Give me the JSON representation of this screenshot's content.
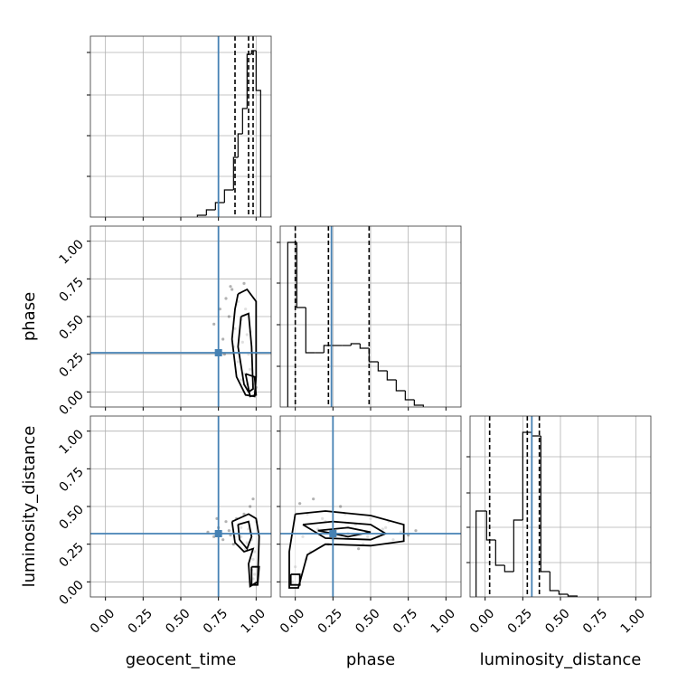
{
  "chart_data": [
    {
      "type": "histogram",
      "xlim": [
        -0.1,
        1.1
      ],
      "xticks": [
        0,
        0.25,
        0.5,
        0.75,
        1
      ],
      "ylim": [
        0,
        100
      ],
      "yticks": [
        22.5,
        45,
        67.5,
        91
      ],
      "bins": [
        0.61,
        0.67,
        0.73,
        0.79,
        0.85,
        0.88,
        0.91,
        0.94,
        0.97,
        1.0,
        1.03
      ],
      "counts": [
        1,
        4,
        8,
        15,
        33,
        46,
        60,
        90,
        92,
        70
      ],
      "color": "#000000",
      "quantiles": [
        0.86,
        0.95,
        0.98
      ],
      "truth": 0.75,
      "truth_color": "#4682b4",
      "grid": true
    },
    {
      "type": "scatter",
      "ylabel": "phase",
      "xlim": [
        -0.1,
        1.1
      ],
      "ylim": [
        -0.1,
        1.1
      ],
      "xticks": [
        0,
        0.25,
        0.5,
        0.75,
        1
      ],
      "yticks": [
        {
          "value": 0,
          "label": "0.00"
        },
        0.25,
        {
          "value": 0.5,
          "label": "0.50"
        },
        0.75,
        {
          "value": 1,
          "label": "1.00"
        }
      ],
      "x": [
        0.72,
        0.76,
        0.78,
        0.8,
        0.82,
        0.84,
        0.85,
        0.86,
        0.87,
        0.88,
        0.89,
        0.9,
        0.91,
        0.92,
        0.93,
        0.94,
        0.95,
        0.96,
        0.97,
        0.98,
        0.99,
        1.0,
        0.83,
        0.88,
        0.92,
        0.96,
        0.79,
        0.9,
        0.94,
        0.98
      ],
      "y": [
        0.45,
        0.55,
        0.35,
        0.62,
        0.5,
        0.68,
        0.3,
        0.42,
        0.58,
        0.2,
        0.65,
        0.48,
        0.33,
        0.12,
        0.55,
        0.05,
        0.25,
        0.4,
        0.02,
        0.1,
        0.0,
        0.03,
        0.7,
        0.6,
        0.72,
        0.15,
        0.25,
        0.08,
        0.38,
        0.05
      ],
      "contours": [
        {
          "x": [
            0.88,
            0.94,
            1.0,
            1.0,
            0.99,
            0.93,
            0.87,
            0.84,
            0.86,
            0.88
          ],
          "y": [
            0.65,
            0.68,
            0.6,
            0.1,
            -0.03,
            -0.02,
            0.1,
            0.35,
            0.55,
            0.65
          ]
        },
        {
          "x": [
            0.9,
            0.95,
            0.97,
            0.98,
            0.95,
            0.92,
            0.88,
            0.9
          ],
          "y": [
            0.5,
            0.52,
            0.3,
            0.02,
            0.0,
            0.05,
            0.3,
            0.5
          ]
        },
        {
          "x": [
            0.93,
            0.99,
            1.0,
            0.96,
            0.93
          ],
          "y": [
            0.12,
            0.1,
            -0.02,
            -0.03,
            0.12
          ]
        }
      ],
      "truth_x": 0.75,
      "truth_y": 0.26,
      "truth_color": "#4682b4",
      "point_color": "#555555",
      "grid": true
    },
    {
      "type": "histogram",
      "xlim": [
        -0.1,
        1.1
      ],
      "xticks": [
        0,
        0.25,
        0.5,
        0.75,
        1
      ],
      "ylim": [
        0,
        200
      ],
      "yticks": [
        45,
        91,
        137,
        182
      ],
      "bins": [
        -0.05,
        0.01,
        0.07,
        0.13,
        0.19,
        0.25,
        0.31,
        0.37,
        0.43,
        0.49,
        0.55,
        0.61,
        0.67,
        0.73,
        0.79,
        0.85
      ],
      "counts": [
        182,
        110,
        60,
        60,
        68,
        68,
        68,
        70,
        65,
        50,
        40,
        30,
        18,
        8,
        2
      ],
      "color": "#000000",
      "quantiles": [
        0.0,
        0.22,
        0.49
      ],
      "truth": 0.24,
      "truth_color": "#4682b4",
      "grid": true
    },
    {
      "type": "scatter",
      "xlabel": "geocent_time",
      "ylabel": "luminosity_distance",
      "xlim": [
        -0.1,
        1.1
      ],
      "ylim": [
        -0.1,
        1.1
      ],
      "xticks": [
        {
          "value": 0,
          "label": "0.00"
        },
        0.25,
        {
          "value": 0.5,
          "label": "0.50"
        },
        0.75,
        {
          "value": 1,
          "label": "1.00"
        }
      ],
      "yticks": [
        {
          "value": 0,
          "label": "0.00"
        },
        0.25,
        {
          "value": 0.5,
          "label": "0.50"
        },
        0.75,
        {
          "value": 1,
          "label": "1.00"
        }
      ],
      "x": [
        0.68,
        0.72,
        0.75,
        0.78,
        0.8,
        0.82,
        0.85,
        0.87,
        0.88,
        0.9,
        0.92,
        0.93,
        0.95,
        0.96,
        0.97,
        0.98,
        0.99,
        1.0,
        1.0,
        0.99,
        0.98,
        1.0,
        0.97,
        0.74,
        0.83,
        0.9,
        0.94,
        0.96,
        0.86,
        0.98
      ],
      "y": [
        0.33,
        0.3,
        0.36,
        0.28,
        0.4,
        0.34,
        0.25,
        0.42,
        0.38,
        0.3,
        0.45,
        0.22,
        0.35,
        0.5,
        0.28,
        0.15,
        0.05,
        0.0,
        0.1,
        0.2,
        0.55,
        0.4,
        0.08,
        0.42,
        0.31,
        0.36,
        0.26,
        0.33,
        0.3,
        0.02
      ],
      "contours": [
        {
          "x": [
            0.84,
            0.95,
            1.0,
            1.02,
            1.01,
            0.96,
            0.95,
            0.98,
            0.92,
            0.86,
            0.84
          ],
          "y": [
            0.4,
            0.45,
            0.42,
            0.3,
            0.0,
            -0.03,
            0.12,
            0.22,
            0.2,
            0.26,
            0.4
          ]
        },
        {
          "x": [
            0.88,
            0.95,
            0.97,
            0.94,
            0.89,
            0.88
          ],
          "y": [
            0.38,
            0.4,
            0.3,
            0.22,
            0.28,
            0.38
          ]
        },
        {
          "x": [
            0.97,
            1.02,
            1.01,
            0.97,
            0.97
          ],
          "y": [
            0.1,
            0.1,
            -0.02,
            -0.02,
            0.1
          ]
        }
      ],
      "truth_x": 0.75,
      "truth_y": 0.32,
      "truth_color": "#4682b4",
      "point_color": "#555555",
      "grid": true
    },
    {
      "type": "scatter",
      "xlabel": "phase",
      "xlim": [
        -0.1,
        1.1
      ],
      "ylim": [
        -0.1,
        1.1
      ],
      "xticks": [
        {
          "value": 0,
          "label": "0.00"
        },
        0.25,
        {
          "value": 0.5,
          "label": "0.50"
        },
        0.75,
        {
          "value": 1,
          "label": "1.00"
        }
      ],
      "yticks": [
        0,
        0.25,
        0.5,
        0.75,
        1
      ],
      "x": [
        -0.02,
        0.0,
        0.02,
        0.05,
        0.08,
        0.1,
        0.15,
        0.2,
        0.25,
        0.3,
        0.35,
        0.4,
        0.45,
        0.5,
        0.55,
        0.6,
        0.65,
        0.7,
        0.75,
        0.8,
        0.12,
        0.22,
        0.33,
        0.48,
        0.62,
        0.03,
        0.07,
        0.18,
        0.42,
        0.58
      ],
      "y": [
        0.0,
        0.1,
        0.05,
        0.3,
        0.45,
        0.2,
        0.35,
        0.4,
        0.28,
        0.5,
        0.32,
        0.38,
        0.25,
        0.42,
        0.3,
        0.36,
        0.28,
        0.33,
        0.31,
        0.34,
        0.55,
        0.25,
        0.45,
        0.3,
        0.4,
        0.52,
        0.15,
        0.42,
        0.22,
        0.35
      ],
      "contours": [
        {
          "x": [
            0.0,
            0.2,
            0.5,
            0.72,
            0.72,
            0.5,
            0.2,
            0.08,
            0.02,
            -0.04,
            -0.04,
            0.0
          ],
          "y": [
            0.45,
            0.47,
            0.44,
            0.38,
            0.27,
            0.24,
            0.25,
            0.18,
            -0.04,
            -0.04,
            0.2,
            0.45
          ]
        },
        {
          "x": [
            0.05,
            0.25,
            0.5,
            0.6,
            0.5,
            0.2,
            0.05
          ],
          "y": [
            0.38,
            0.4,
            0.38,
            0.32,
            0.28,
            0.29,
            0.38
          ]
        },
        {
          "x": [
            0.15,
            0.35,
            0.5,
            0.35,
            0.15
          ],
          "y": [
            0.34,
            0.36,
            0.33,
            0.3,
            0.34
          ]
        },
        {
          "x": [
            -0.03,
            0.03,
            0.03,
            -0.03,
            -0.03
          ],
          "y": [
            0.05,
            0.05,
            -0.02,
            -0.02,
            0.05
          ]
        }
      ],
      "truth_x": 0.25,
      "truth_y": 0.32,
      "truth_color": "#4682b4",
      "point_color": "#555555",
      "grid": true
    },
    {
      "type": "histogram",
      "xlabel": "luminosity_distance",
      "xlim": [
        -0.1,
        1.1
      ],
      "xticks": [
        {
          "value": 0,
          "label": "0.00"
        },
        0.25,
        {
          "value": 0.5,
          "label": "0.50"
        },
        0.75,
        {
          "value": 1,
          "label": "1.00"
        }
      ],
      "ylim": [
        0,
        200
      ],
      "yticks": [
        38,
        77,
        115,
        155
      ],
      "bins": [
        -0.06,
        0.01,
        0.07,
        0.13,
        0.19,
        0.25,
        0.31,
        0.37,
        0.43,
        0.49,
        0.55,
        0.61
      ],
      "counts": [
        95,
        63,
        35,
        28,
        85,
        182,
        178,
        28,
        7,
        3,
        1
      ],
      "color": "#000000",
      "quantiles": [
        0.03,
        0.28,
        0.36
      ],
      "truth": 0.31,
      "truth_color": "#4682b4",
      "grid": true
    }
  ]
}
